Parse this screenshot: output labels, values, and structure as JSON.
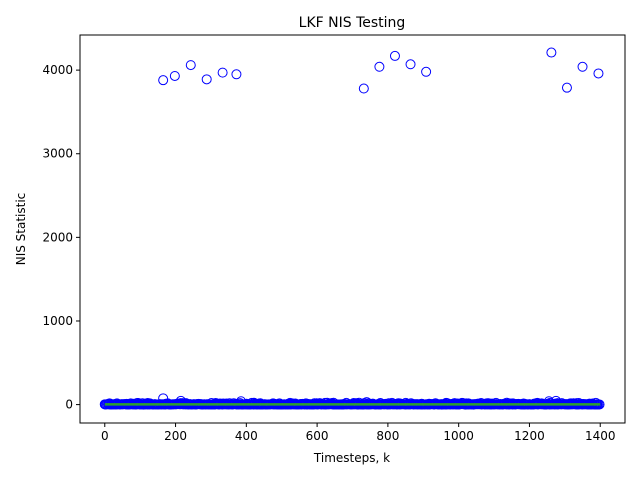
{
  "chart_data": {
    "type": "scatter",
    "title": "LKF NIS Testing",
    "xlabel": "Timesteps, k",
    "ylabel": "NIS Statistic",
    "xlim": [
      -70,
      1470
    ],
    "ylim": [
      -220,
      4420
    ],
    "x_ticks": [
      0,
      200,
      400,
      600,
      800,
      1000,
      1200,
      1400
    ],
    "y_ticks": [
      0,
      1000,
      2000,
      3000,
      4000
    ],
    "grid": false,
    "marker": "open-circle",
    "marker_color": "#0000ff",
    "reference_line_color": "#2ca02c",
    "reference_line_value": 2,
    "baseline_range": [
      0,
      1400
    ],
    "outliers": [
      {
        "x": 165,
        "y": 3880
      },
      {
        "x": 198,
        "y": 3930
      },
      {
        "x": 243,
        "y": 4060
      },
      {
        "x": 288,
        "y": 3890
      },
      {
        "x": 333,
        "y": 3970
      },
      {
        "x": 372,
        "y": 3950
      },
      {
        "x": 732,
        "y": 3780
      },
      {
        "x": 776,
        "y": 4040
      },
      {
        "x": 820,
        "y": 4170
      },
      {
        "x": 864,
        "y": 4070
      },
      {
        "x": 908,
        "y": 3980
      },
      {
        "x": 1262,
        "y": 4210
      },
      {
        "x": 1306,
        "y": 3790
      },
      {
        "x": 1350,
        "y": 4040
      },
      {
        "x": 1395,
        "y": 3960
      }
    ],
    "low_points": [
      {
        "x": 165,
        "y": 75
      },
      {
        "x": 215,
        "y": 45
      },
      {
        "x": 385,
        "y": 40
      },
      {
        "x": 1255,
        "y": 40
      },
      {
        "x": 1275,
        "y": 45
      },
      {
        "x": 740,
        "y": 30
      }
    ]
  }
}
